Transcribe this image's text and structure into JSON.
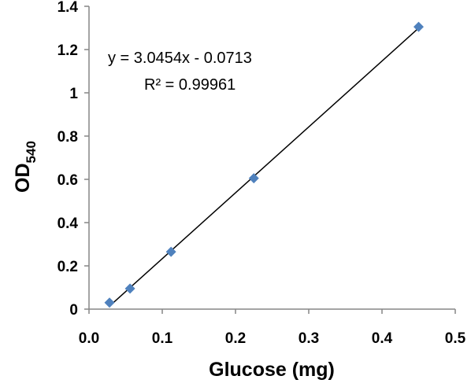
{
  "chart_data": {
    "type": "scatter",
    "xlabel": "Glucose (mg)",
    "ylabel": {
      "main": "OD",
      "subscript": "540"
    },
    "xlim": [
      0,
      0.5
    ],
    "ylim": [
      0,
      1.4
    ],
    "x_ticks": [
      {
        "value": 0.0,
        "label": "0.0"
      },
      {
        "value": 0.1,
        "label": "0.1"
      },
      {
        "value": 0.2,
        "label": "0.2"
      },
      {
        "value": 0.3,
        "label": "0.3"
      },
      {
        "value": 0.4,
        "label": "0.4"
      },
      {
        "value": 0.5,
        "label": "0.5"
      }
    ],
    "y_ticks": [
      {
        "value": 0,
        "label": "0"
      },
      {
        "value": 0.2,
        "label": "0.2"
      },
      {
        "value": 0.4,
        "label": "0.4"
      },
      {
        "value": 0.6,
        "label": "0.6"
      },
      {
        "value": 0.8,
        "label": "0.8"
      },
      {
        "value": 1,
        "label": "1"
      },
      {
        "value": 1.2,
        "label": "1.2"
      },
      {
        "value": 1.4,
        "label": "1.4"
      }
    ],
    "grid": false,
    "legend": "none",
    "series": [
      {
        "marker": "diamond",
        "color": "#4f81bd",
        "points": [
          {
            "x": 0.028,
            "y": 0.03
          },
          {
            "x": 0.056,
            "y": 0.095
          },
          {
            "x": 0.112,
            "y": 0.265
          },
          {
            "x": 0.225,
            "y": 0.605
          },
          {
            "x": 0.45,
            "y": 1.305
          }
        ]
      }
    ],
    "trendline": {
      "type": "linear",
      "slope": 3.0454,
      "intercept": -0.0713,
      "x_range": [
        0.028,
        0.45
      ],
      "color": "#000000"
    },
    "annotations": {
      "equation": "y = 3.0454x - 0.0713",
      "r_squared": "R² = 0.99961"
    }
  }
}
